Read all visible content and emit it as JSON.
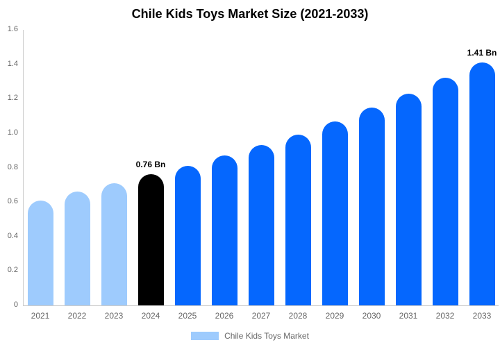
{
  "chart_data": {
    "type": "bar",
    "title": "Chile Kids Toys Market Size (2021-2033)",
    "categories": [
      "2021",
      "2022",
      "2023",
      "2024",
      "2025",
      "2026",
      "2027",
      "2028",
      "2029",
      "2030",
      "2031",
      "2032",
      "2033"
    ],
    "values": [
      0.61,
      0.66,
      0.71,
      0.76,
      0.81,
      0.87,
      0.93,
      0.99,
      1.07,
      1.15,
      1.23,
      1.32,
      1.41
    ],
    "point_labels": [
      "",
      "",
      "",
      "0.76 Bn",
      "",
      "",
      "",
      "",
      "",
      "",
      "",
      "",
      "1.41 Bn"
    ],
    "bar_colors": [
      "#9ECBFD",
      "#9ECBFD",
      "#9ECBFD",
      "#000000",
      "#0567FE",
      "#0567FE",
      "#0567FE",
      "#0567FE",
      "#0567FE",
      "#0567FE",
      "#0567FE",
      "#0567FE",
      "#0567FE"
    ],
    "yticks": [
      "0",
      "0.2",
      "0.4",
      "0.6",
      "0.8",
      "1.0",
      "1.2",
      "1.4",
      "1.6"
    ],
    "ylim": [
      0,
      1.6
    ],
    "xlabel": "",
    "ylabel": "",
    "grid": false,
    "unit": "Bn",
    "legend": {
      "position": "bottom",
      "entries": [
        {
          "label": "Chile Kids Toys Market",
          "color": "#9ECBFD"
        }
      ]
    },
    "colors": {
      "light_blue": "#9ECBFD",
      "blue": "#0567FE",
      "black": "#000000",
      "axis_line": "#CCCCCC",
      "tick_text": "#666666",
      "title_text": "#000000"
    }
  }
}
